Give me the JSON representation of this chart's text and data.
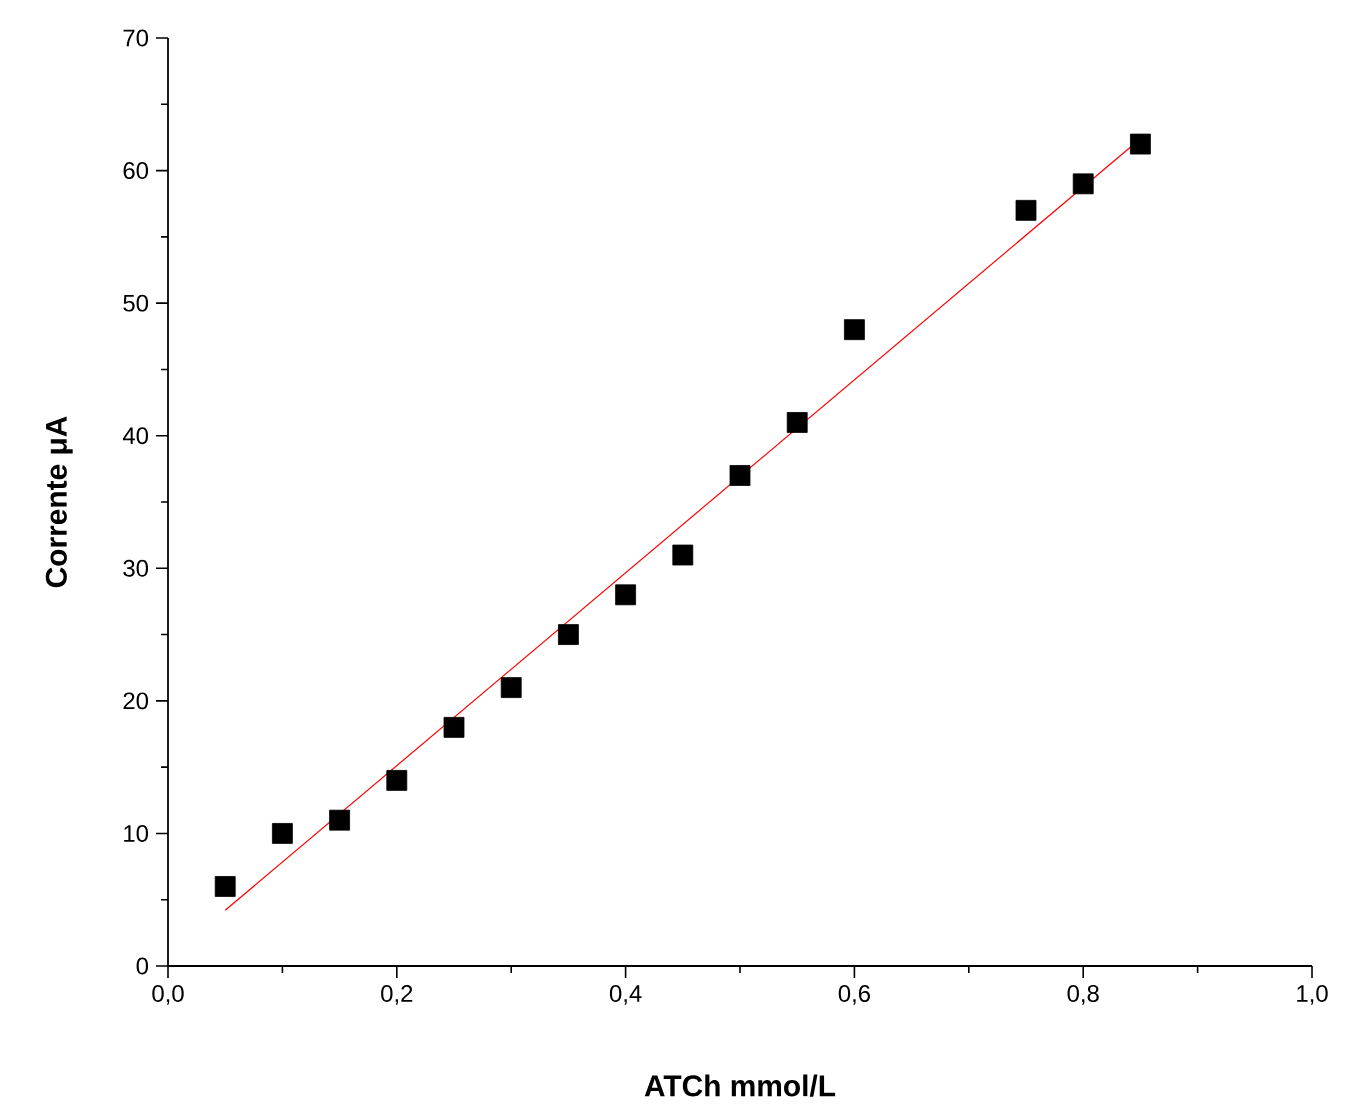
{
  "chart_data": {
    "type": "scatter",
    "xlabel": "ATCh mmol/L",
    "ylabel": "Corrente μA",
    "xlim": [
      0,
      1.0
    ],
    "ylim": [
      0,
      70
    ],
    "xticks": [
      {
        "value": 0,
        "label": "0,0"
      },
      {
        "value": 0.2,
        "label": "0,2"
      },
      {
        "value": 0.4,
        "label": "0,4"
      },
      {
        "value": 0.6,
        "label": "0,6"
      },
      {
        "value": 0.8,
        "label": "0,8"
      },
      {
        "value": 1.0,
        "label": "1,0"
      }
    ],
    "yticks": [
      0,
      10,
      20,
      30,
      40,
      50,
      60,
      70
    ],
    "grid": false,
    "series": [
      {
        "marker": "square",
        "color": "#000000",
        "x": [
          0.05,
          0.1,
          0.15,
          0.2,
          0.25,
          0.3,
          0.35,
          0.4,
          0.45,
          0.5,
          0.55,
          0.6,
          0.75,
          0.8,
          0.85
        ],
        "values": [
          6,
          10,
          11,
          14,
          18,
          21,
          25,
          28,
          31,
          37,
          41,
          48,
          57,
          59,
          62
        ]
      },
      {
        "type": "line",
        "marker": "none",
        "line_style": "solid",
        "color": "#ff0000",
        "x": [
          0.05,
          0.85
        ],
        "values": [
          4.2,
          62.4
        ]
      }
    ]
  }
}
